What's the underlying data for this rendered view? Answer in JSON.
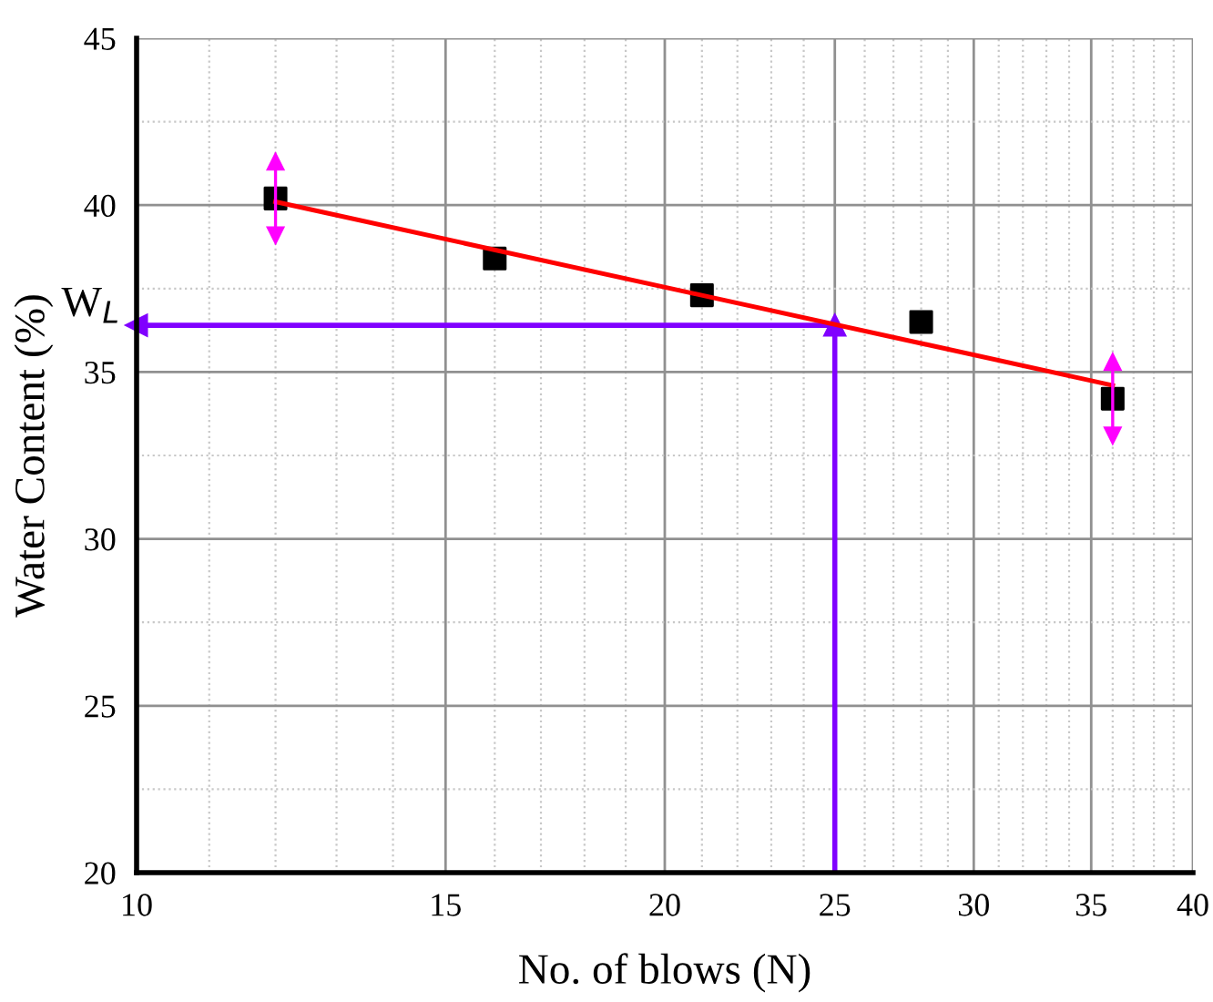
{
  "chart_data": {
    "type": "scatter",
    "xlabel": "No. of blows (N)",
    "ylabel": "Water Content (%)",
    "log": "x",
    "xlim": [
      10,
      40
    ],
    "xticks": [
      10,
      15,
      20,
      25,
      30,
      35,
      40
    ],
    "ylim": [
      20,
      45
    ],
    "yticks": [
      20,
      25,
      30,
      35,
      40,
      45
    ],
    "grid": true,
    "series": [
      {
        "type": "scatter",
        "marker": "square",
        "color": "#000000",
        "x": [
          12,
          16,
          21,
          28,
          36
        ],
        "values": [
          40.2,
          38.4,
          37.3,
          36.5,
          34.2
        ],
        "errors": [
          1.1,
          null,
          null,
          null,
          1.1
        ]
      },
      {
        "type": "line",
        "color": "#ff0000",
        "x": [
          12,
          36
        ],
        "values": [
          40.1,
          34.6
        ]
      }
    ],
    "ref_lines": [
      {
        "axis": "x",
        "value": 25,
        "color": "#8000ff"
      },
      {
        "axis": "y",
        "value": 36.4,
        "label": "W$_{L}$",
        "color": "#8000ff"
      }
    ]
  }
}
